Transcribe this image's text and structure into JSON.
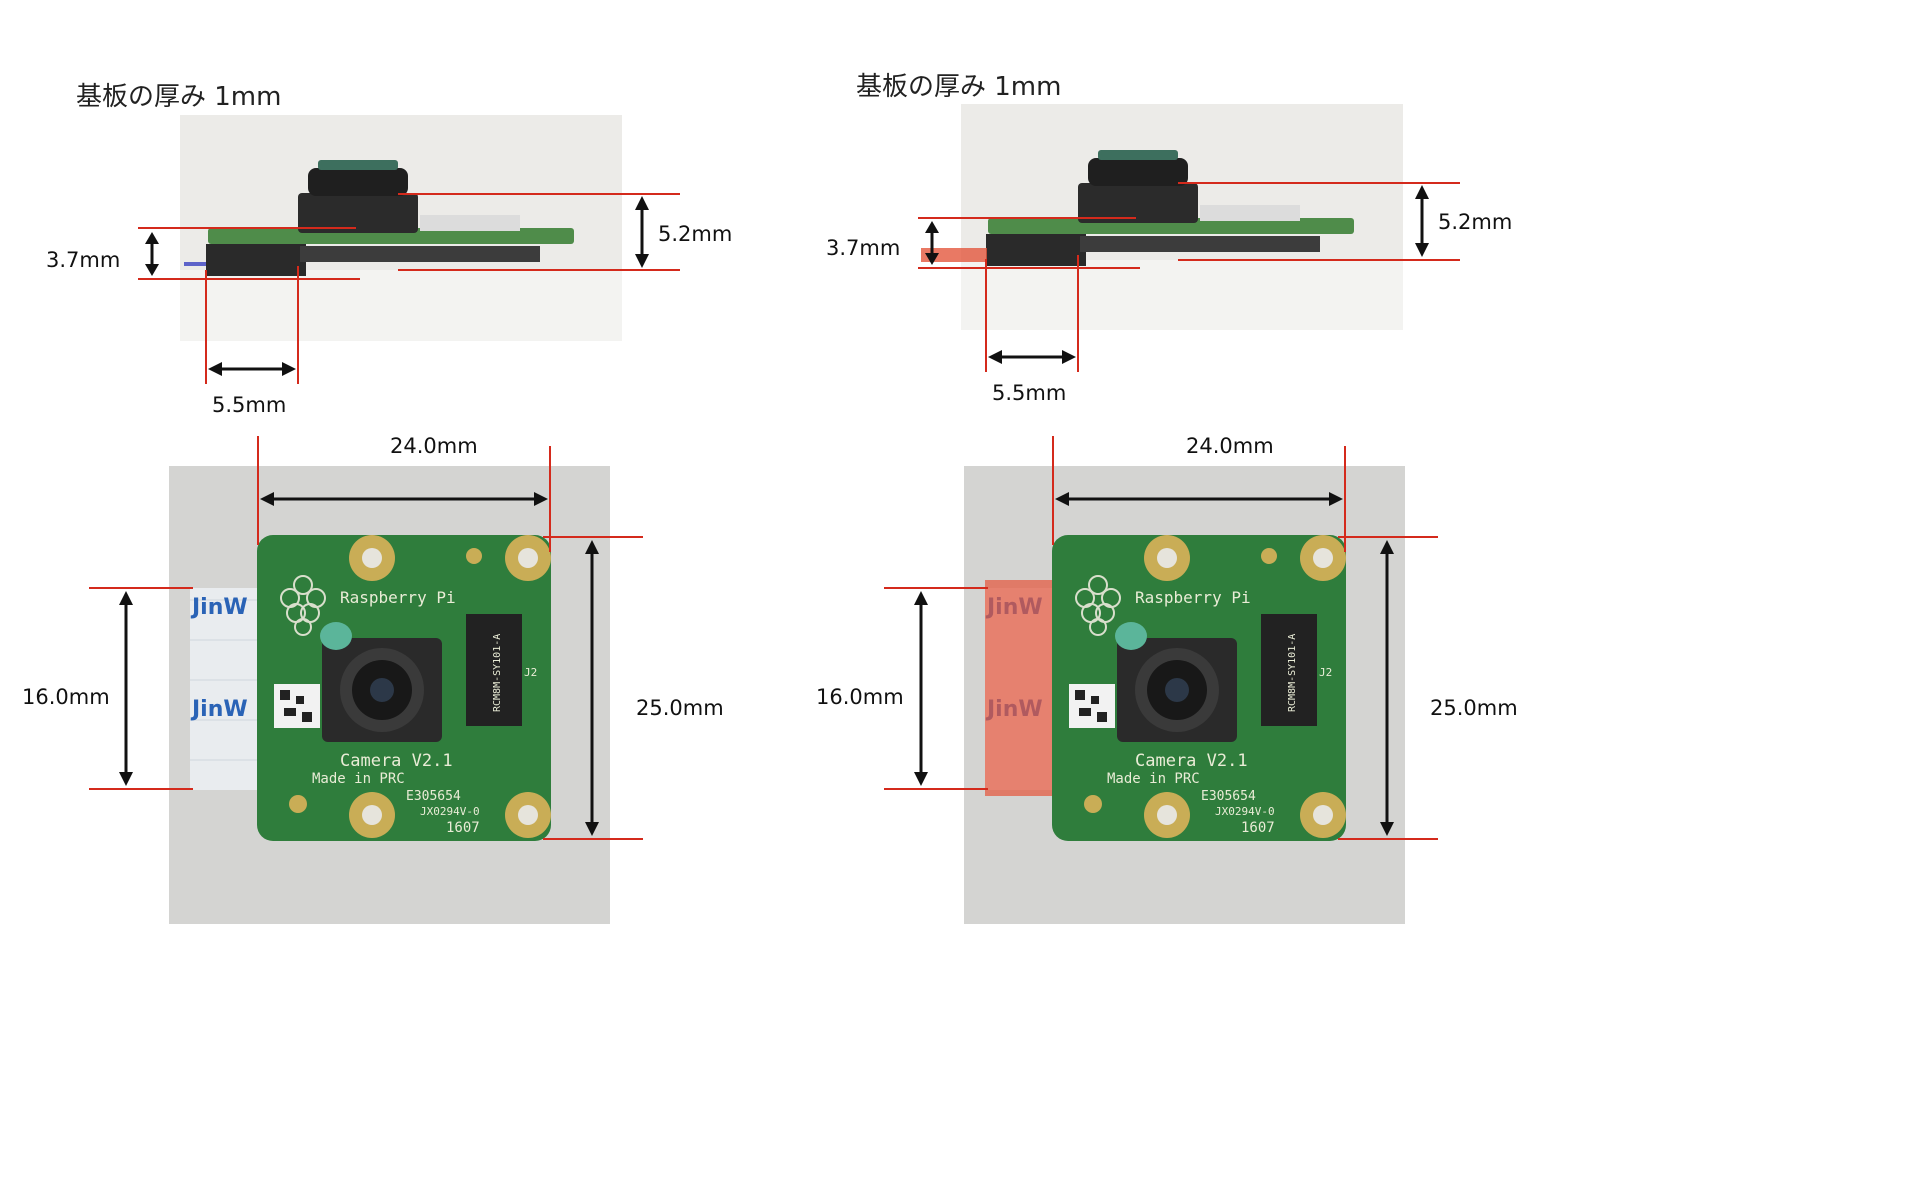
{
  "panels": [
    {
      "id": "left",
      "thickness_label": "基板の厚み 1mm",
      "dims": {
        "side_height_small": "3.7mm",
        "side_height_large": "5.2mm",
        "side_connector_width": "5.5mm",
        "top_width": "24.0mm",
        "top_height": "25.0mm",
        "cable_width": "16.0mm"
      },
      "cable_highlight": false
    },
    {
      "id": "right",
      "thickness_label": "基板の厚み 1mm",
      "dims": {
        "side_height_small": "3.7mm",
        "side_height_large": "5.2mm",
        "side_connector_width": "5.5mm",
        "top_width": "24.0mm",
        "top_height": "25.0mm",
        "cable_width": "16.0mm"
      },
      "cable_highlight": true
    }
  ],
  "board_print": {
    "brand": "Raspberry Pi",
    "model": "Camera V2.1",
    "origin": "Made in PRC",
    "cert": "E305654",
    "code": "JX0294V-0",
    "date": "1607",
    "sensor": "RCM8M-SY101-A",
    "conn": "J2",
    "cable": "JinW"
  },
  "colors": {
    "measure_line": "#d42a1c",
    "arrow": "#111111",
    "pcb": "#2f7d3c",
    "pad": "#c9ad56",
    "highlight": "#e4583d"
  }
}
